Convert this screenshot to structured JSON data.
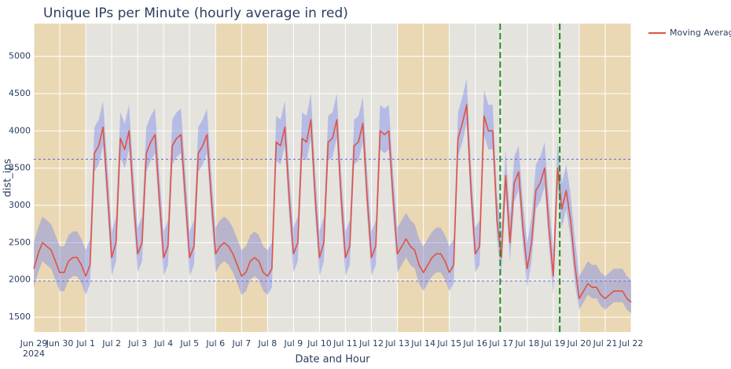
{
  "chart_data": {
    "type": "line",
    "title": "Unique IPs per Minute (hourly average in red)",
    "x_label": "Date and Hour",
    "y_label": "dist_ips",
    "xlim": [
      "2024-06-29T00:00",
      "2024-07-22T00:00"
    ],
    "ylim": [
      1300,
      5440
    ],
    "yticks": [
      1500,
      2000,
      2500,
      3000,
      3500,
      4000,
      4500,
      5000
    ],
    "xticks": [
      {
        "value": "2024-06-29T00:00",
        "label": "Jun 29"
      },
      {
        "value": "2024-06-30T00:00",
        "label": "Jun 30"
      },
      {
        "value": "2024-07-01T00:00",
        "label": "Jul 1"
      },
      {
        "value": "2024-07-02T00:00",
        "label": "Jul 2"
      },
      {
        "value": "2024-07-03T00:00",
        "label": "Jul 3"
      },
      {
        "value": "2024-07-04T00:00",
        "label": "Jul 4"
      },
      {
        "value": "2024-07-05T00:00",
        "label": "Jul 5"
      },
      {
        "value": "2024-07-06T00:00",
        "label": "Jul 6"
      },
      {
        "value": "2024-07-07T00:00",
        "label": "Jul 7"
      },
      {
        "value": "2024-07-08T00:00",
        "label": "Jul 8"
      },
      {
        "value": "2024-07-09T00:00",
        "label": "Jul 9"
      },
      {
        "value": "2024-07-10T00:00",
        "label": "Jul 10"
      },
      {
        "value": "2024-07-11T00:00",
        "label": "Jul 11"
      },
      {
        "value": "2024-07-12T00:00",
        "label": "Jul 12"
      },
      {
        "value": "2024-07-13T00:00",
        "label": "Jul 13"
      },
      {
        "value": "2024-07-14T00:00",
        "label": "Jul 14"
      },
      {
        "value": "2024-07-15T00:00",
        "label": "Jul 15"
      },
      {
        "value": "2024-07-16T00:00",
        "label": "Jul 16"
      },
      {
        "value": "2024-07-17T00:00",
        "label": "Jul 17"
      },
      {
        "value": "2024-07-18T00:00",
        "label": "Jul 18"
      },
      {
        "value": "2024-07-19T00:00",
        "label": "Jul 19"
      },
      {
        "value": "2024-07-20T00:00",
        "label": "Jul 20"
      },
      {
        "value": "2024-07-21T00:00",
        "label": "Jul 21"
      },
      {
        "value": "2024-07-22T00:00",
        "label": "Jul 22"
      }
    ],
    "xtick_year": "2024",
    "grid": true,
    "plot_bg": "#e5e3dd",
    "shaded_regions": [
      {
        "x0": "2024-06-29T00:00",
        "x1": "2024-07-01T00:00",
        "color": "#e9d8b3"
      },
      {
        "x0": "2024-07-06T00:00",
        "x1": "2024-07-08T00:00",
        "color": "#e9d8b3"
      },
      {
        "x0": "2024-07-13T00:00",
        "x1": "2024-07-15T00:00",
        "color": "#e9d8b3"
      },
      {
        "x0": "2024-07-20T00:00",
        "x1": "2024-07-22T00:00",
        "color": "#e9d8b3"
      }
    ],
    "hlines": [
      {
        "y": 3620,
        "color": "#6a6ad8"
      },
      {
        "y": 1985,
        "color": "#6a6ad8"
      }
    ],
    "vlines": [
      {
        "x": "2024-07-16T23:00",
        "color": "#1f8a1f"
      },
      {
        "x": "2024-07-19T06:00",
        "color": "#1f8a1f"
      }
    ],
    "legend_position": "top-right",
    "x": [
      "2024-06-29T00:00",
      "2024-06-29T04:00",
      "2024-06-29T08:00",
      "2024-06-29T12:00",
      "2024-06-29T16:00",
      "2024-06-29T20:00",
      "2024-06-30T00:00",
      "2024-06-30T04:00",
      "2024-06-30T08:00",
      "2024-06-30T12:00",
      "2024-06-30T16:00",
      "2024-06-30T20:00",
      "2024-07-01T00:00",
      "2024-07-01T04:00",
      "2024-07-01T08:00",
      "2024-07-01T12:00",
      "2024-07-01T16:00",
      "2024-07-01T20:00",
      "2024-07-02T00:00",
      "2024-07-02T04:00",
      "2024-07-02T08:00",
      "2024-07-02T12:00",
      "2024-07-02T16:00",
      "2024-07-02T20:00",
      "2024-07-03T00:00",
      "2024-07-03T04:00",
      "2024-07-03T08:00",
      "2024-07-03T12:00",
      "2024-07-03T16:00",
      "2024-07-03T20:00",
      "2024-07-04T00:00",
      "2024-07-04T04:00",
      "2024-07-04T08:00",
      "2024-07-04T12:00",
      "2024-07-04T16:00",
      "2024-07-04T20:00",
      "2024-07-05T00:00",
      "2024-07-05T04:00",
      "2024-07-05T08:00",
      "2024-07-05T12:00",
      "2024-07-05T16:00",
      "2024-07-05T20:00",
      "2024-07-06T00:00",
      "2024-07-06T04:00",
      "2024-07-06T08:00",
      "2024-07-06T12:00",
      "2024-07-06T16:00",
      "2024-07-06T20:00",
      "2024-07-07T00:00",
      "2024-07-07T04:00",
      "2024-07-07T08:00",
      "2024-07-07T12:00",
      "2024-07-07T16:00",
      "2024-07-07T20:00",
      "2024-07-08T00:00",
      "2024-07-08T04:00",
      "2024-07-08T08:00",
      "2024-07-08T12:00",
      "2024-07-08T16:00",
      "2024-07-08T20:00",
      "2024-07-09T00:00",
      "2024-07-09T04:00",
      "2024-07-09T08:00",
      "2024-07-09T12:00",
      "2024-07-09T16:00",
      "2024-07-09T20:00",
      "2024-07-10T00:00",
      "2024-07-10T04:00",
      "2024-07-10T08:00",
      "2024-07-10T12:00",
      "2024-07-10T16:00",
      "2024-07-10T20:00",
      "2024-07-11T00:00",
      "2024-07-11T04:00",
      "2024-07-11T08:00",
      "2024-07-11T12:00",
      "2024-07-11T16:00",
      "2024-07-11T20:00",
      "2024-07-12T00:00",
      "2024-07-12T04:00",
      "2024-07-12T08:00",
      "2024-07-12T12:00",
      "2024-07-12T16:00",
      "2024-07-12T20:00",
      "2024-07-13T00:00",
      "2024-07-13T04:00",
      "2024-07-13T08:00",
      "2024-07-13T12:00",
      "2024-07-13T16:00",
      "2024-07-13T20:00",
      "2024-07-14T00:00",
      "2024-07-14T04:00",
      "2024-07-14T08:00",
      "2024-07-14T12:00",
      "2024-07-14T16:00",
      "2024-07-14T20:00",
      "2024-07-15T00:00",
      "2024-07-15T04:00",
      "2024-07-15T08:00",
      "2024-07-15T12:00",
      "2024-07-15T16:00",
      "2024-07-15T20:00",
      "2024-07-16T00:00",
      "2024-07-16T04:00",
      "2024-07-16T08:00",
      "2024-07-16T12:00",
      "2024-07-16T16:00",
      "2024-07-16T20:00",
      "2024-07-17T00:00",
      "2024-07-17T04:00",
      "2024-07-17T08:00",
      "2024-07-17T12:00",
      "2024-07-17T16:00",
      "2024-07-17T20:00",
      "2024-07-18T00:00",
      "2024-07-18T04:00",
      "2024-07-18T08:00",
      "2024-07-18T12:00",
      "2024-07-18T16:00",
      "2024-07-18T20:00",
      "2024-07-19T00:00",
      "2024-07-19T04:00",
      "2024-07-19T08:00",
      "2024-07-19T12:00",
      "2024-07-19T16:00",
      "2024-07-19T20:00",
      "2024-07-20T00:00",
      "2024-07-20T04:00",
      "2024-07-20T08:00",
      "2024-07-20T12:00",
      "2024-07-20T16:00",
      "2024-07-20T20:00",
      "2024-07-21T00:00",
      "2024-07-21T04:00",
      "2024-07-21T08:00",
      "2024-07-21T12:00",
      "2024-07-21T16:00",
      "2024-07-21T20:00",
      "2024-07-22T00:00"
    ],
    "band": {
      "color": "#6f7ff0",
      "lower": [
        1900,
        2100,
        2250,
        2200,
        2150,
        2000,
        1850,
        1850,
        2000,
        2050,
        2050,
        1950,
        1800,
        1950,
        3450,
        3550,
        3800,
        2950,
        2050,
        2250,
        3650,
        3500,
        3750,
        2850,
        2100,
        2250,
        3450,
        3600,
        3700,
        2850,
        2050,
        2200,
        3550,
        3650,
        3700,
        2850,
        2050,
        2200,
        3450,
        3550,
        3700,
        2850,
        2100,
        2200,
        2250,
        2200,
        2100,
        1950,
        1800,
        1850,
        2000,
        2050,
        2000,
        1850,
        1800,
        1900,
        3600,
        3550,
        3800,
        2850,
        2100,
        2250,
        3650,
        3600,
        3900,
        2850,
        2050,
        2250,
        3600,
        3650,
        3900,
        2850,
        2050,
        2200,
        3550,
        3600,
        3850,
        2850,
        2050,
        2200,
        3750,
        3700,
        3750,
        2850,
        2100,
        2200,
        2300,
        2200,
        2150,
        1950,
        1850,
        1950,
        2050,
        2100,
        2100,
        2000,
        1850,
        1950,
        3650,
        3850,
        4100,
        2950,
        2100,
        2200,
        3950,
        3750,
        3750,
        2550,
        2050,
        3150,
        2250,
        3050,
        3200,
        2450,
        1900,
        2250,
        2950,
        3050,
        3250,
        2450,
        1800,
        3250,
        2700,
        2950,
        2550,
        1950,
        1600,
        1700,
        1800,
        1750,
        1750,
        1650,
        1600,
        1650,
        1700,
        1700,
        1700,
        1600,
        1550
      ],
      "upper": [
        2500,
        2700,
        2850,
        2800,
        2750,
        2600,
        2450,
        2450,
        2600,
        2650,
        2650,
        2550,
        2400,
        2550,
        4050,
        4150,
        4400,
        3550,
        2650,
        2850,
        4250,
        4100,
        4350,
        3450,
        2700,
        2850,
        4050,
        4200,
        4300,
        3450,
        2650,
        2800,
        4150,
        4250,
        4300,
        3450,
        2650,
        2800,
        4050,
        4150,
        4300,
        3450,
        2700,
        2800,
        2850,
        2800,
        2700,
        2550,
        2400,
        2450,
        2600,
        2650,
        2600,
        2450,
        2400,
        2500,
        4200,
        4150,
        4400,
        3450,
        2700,
        2850,
        4250,
        4200,
        4500,
        3450,
        2650,
        2850,
        4200,
        4250,
        4500,
        3450,
        2650,
        2800,
        4150,
        4200,
        4450,
        3450,
        2650,
        2800,
        4350,
        4300,
        4350,
        3450,
        2700,
        2800,
        2900,
        2800,
        2750,
        2550,
        2450,
        2550,
        2650,
        2700,
        2700,
        2600,
        2450,
        2550,
        4250,
        4450,
        4700,
        3550,
        2700,
        2800,
        4550,
        4350,
        4350,
        3150,
        2650,
        3750,
        2850,
        3650,
        3800,
        3050,
        2500,
        2850,
        3550,
        3650,
        3850,
        3050,
        2400,
        3850,
        3300,
        3550,
        3150,
        2550,
        2050,
        2150,
        2250,
        2200,
        2200,
        2100,
        2050,
        2100,
        2150,
        2150,
        2150,
        2050,
        2000
      ]
    },
    "series": [
      {
        "name": "Moving Average",
        "color": "#e0533f",
        "values": [
          2150,
          2350,
          2500,
          2450,
          2400,
          2250,
          2100,
          2100,
          2250,
          2300,
          2300,
          2200,
          2050,
          2200,
          3700,
          3800,
          4050,
          3200,
          2300,
          2500,
          3900,
          3750,
          4000,
          3100,
          2350,
          2500,
          3700,
          3850,
          3950,
          3100,
          2300,
          2450,
          3800,
          3900,
          3950,
          3100,
          2300,
          2450,
          3700,
          3800,
          3950,
          3100,
          2350,
          2450,
          2500,
          2450,
          2350,
          2200,
          2050,
          2100,
          2250,
          2300,
          2250,
          2100,
          2050,
          2150,
          3850,
          3800,
          4050,
          3100,
          2350,
          2500,
          3900,
          3850,
          4150,
          3100,
          2300,
          2500,
          3850,
          3900,
          4150,
          3100,
          2300,
          2450,
          3800,
          3850,
          4100,
          3100,
          2300,
          2450,
          4000,
          3950,
          4000,
          3100,
          2350,
          2450,
          2550,
          2450,
          2400,
          2200,
          2100,
          2200,
          2300,
          2350,
          2350,
          2250,
          2100,
          2200,
          3900,
          4100,
          4350,
          3200,
          2350,
          2450,
          4200,
          4000,
          4000,
          2800,
          2300,
          3400,
          2500,
          3300,
          3450,
          2700,
          2150,
          2500,
          3200,
          3300,
          3500,
          2700,
          2050,
          3500,
          2950,
          3200,
          2800,
          2200,
          1750,
          1850,
          1950,
          1900,
          1900,
          1800,
          1750,
          1800,
          1850,
          1850,
          1850,
          1750,
          1700
        ]
      }
    ]
  }
}
